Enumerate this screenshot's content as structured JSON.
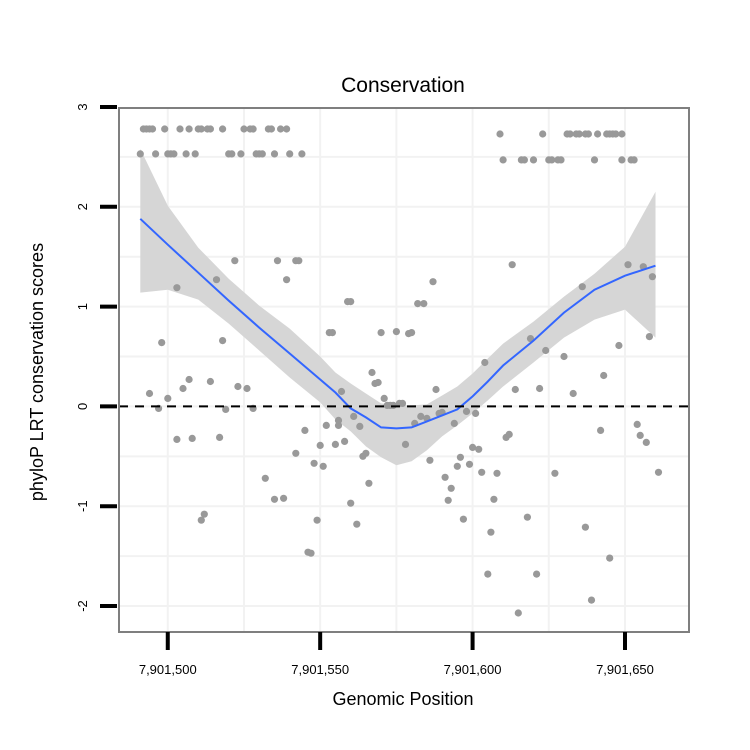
{
  "chart_data": {
    "type": "scatter",
    "title": "Conservation",
    "xlabel": "Genomic Position",
    "ylabel": "phyloP LRT conservation scores",
    "xlim": [
      7901484,
      7901671
    ],
    "ylim": [
      -2.26,
      2.99
    ],
    "x_ticks": [
      7901500,
      7901550,
      7901600,
      7901650
    ],
    "x_tick_labels": [
      "7,901,500",
      "7,901,550",
      "7,901,600",
      "7,901,650"
    ],
    "y_ticks": [
      -2,
      -1,
      0,
      1,
      2,
      3
    ],
    "y_tick_labels": [
      "-2",
      "-1",
      "0",
      "1",
      "2",
      "3"
    ],
    "reference_line_y": 0,
    "colors": {
      "points": "#999999",
      "smooth": "#3366ff",
      "band": "#d6d6d6",
      "panel_border": "#7f7f7f",
      "grid": "#f2f2f2"
    },
    "points": [
      [
        7901491,
        2.53
      ],
      [
        7901492,
        2.78
      ],
      [
        7901493,
        2.78
      ],
      [
        7901494,
        0.13
      ],
      [
        7901494,
        2.78
      ],
      [
        7901495,
        2.78
      ],
      [
        7901496,
        2.53
      ],
      [
        7901497,
        -0.02
      ],
      [
        7901498,
        0.64
      ],
      [
        7901499,
        2.78
      ],
      [
        7901500,
        0.08
      ],
      [
        7901500,
        2.53
      ],
      [
        7901501,
        2.53
      ],
      [
        7901502,
        2.53
      ],
      [
        7901503,
        -0.33
      ],
      [
        7901503,
        1.19
      ],
      [
        7901504,
        2.78
      ],
      [
        7901505,
        0.18
      ],
      [
        7901506,
        2.53
      ],
      [
        7901507,
        0.27
      ],
      [
        7901507,
        2.78
      ],
      [
        7901508,
        -0.32
      ],
      [
        7901509,
        2.53
      ],
      [
        7901510,
        2.78
      ],
      [
        7901511,
        -1.14
      ],
      [
        7901511,
        2.78
      ],
      [
        7901512,
        -1.08
      ],
      [
        7901513,
        2.78
      ],
      [
        7901514,
        0.25
      ],
      [
        7901514,
        2.78
      ],
      [
        7901516,
        1.27
      ],
      [
        7901517,
        -0.31
      ],
      [
        7901518,
        2.78
      ],
      [
        7901518,
        0.66
      ],
      [
        7901519,
        -0.03
      ],
      [
        7901520,
        2.53
      ],
      [
        7901521,
        2.53
      ],
      [
        7901522,
        1.46
      ],
      [
        7901523,
        0.2
      ],
      [
        7901524,
        2.53
      ],
      [
        7901525,
        2.78
      ],
      [
        7901526,
        0.18
      ],
      [
        7901527,
        2.78
      ],
      [
        7901528,
        2.78
      ],
      [
        7901528,
        -0.02
      ],
      [
        7901529,
        2.53
      ],
      [
        7901530,
        2.53
      ],
      [
        7901531,
        2.53
      ],
      [
        7901532,
        -0.72
      ],
      [
        7901533,
        2.78
      ],
      [
        7901534,
        2.78
      ],
      [
        7901535,
        2.53
      ],
      [
        7901535,
        -0.93
      ],
      [
        7901536,
        1.46
      ],
      [
        7901537,
        2.78
      ],
      [
        7901538,
        -0.92
      ],
      [
        7901539,
        2.78
      ],
      [
        7901539,
        1.27
      ],
      [
        7901540,
        2.53
      ],
      [
        7901542,
        -0.47
      ],
      [
        7901542,
        1.46
      ],
      [
        7901543,
        1.46
      ],
      [
        7901544,
        2.53
      ],
      [
        7901545,
        -0.24
      ],
      [
        7901546,
        -1.46
      ],
      [
        7901547,
        -1.47
      ],
      [
        7901548,
        -0.57
      ],
      [
        7901549,
        -1.14
      ],
      [
        7901550,
        -0.39
      ],
      [
        7901551,
        -0.6
      ],
      [
        7901552,
        -0.19
      ],
      [
        7901553,
        0.74
      ],
      [
        7901554,
        0.74
      ],
      [
        7901555,
        -0.38
      ],
      [
        7901556,
        -0.19
      ],
      [
        7901556,
        -0.14
      ],
      [
        7901557,
        0.15
      ],
      [
        7901558,
        -0.35
      ],
      [
        7901559,
        1.05
      ],
      [
        7901560,
        -0.97
      ],
      [
        7901560,
        1.05
      ],
      [
        7901561,
        -0.1
      ],
      [
        7901562,
        -1.18
      ],
      [
        7901563,
        -0.2
      ],
      [
        7901564,
        -0.5
      ],
      [
        7901565,
        -0.47
      ],
      [
        7901566,
        -0.77
      ],
      [
        7901567,
        0.34
      ],
      [
        7901568,
        0.23
      ],
      [
        7901569,
        0.24
      ],
      [
        7901570,
        0.74
      ],
      [
        7901571,
        0.08
      ],
      [
        7901572,
        0.01
      ],
      [
        7901573,
        0.01
      ],
      [
        7901574,
        0.01
      ],
      [
        7901575,
        0.75
      ],
      [
        7901576,
        0.03
      ],
      [
        7901577,
        0.03
      ],
      [
        7901578,
        -0.38
      ],
      [
        7901579,
        0.73
      ],
      [
        7901580,
        0.74
      ],
      [
        7901581,
        -0.17
      ],
      [
        7901582,
        1.03
      ],
      [
        7901583,
        -0.1
      ],
      [
        7901584,
        1.03
      ],
      [
        7901585,
        -0.12
      ],
      [
        7901586,
        -0.54
      ],
      [
        7901587,
        1.25
      ],
      [
        7901588,
        0.17
      ],
      [
        7901589,
        -0.07
      ],
      [
        7901590,
        -0.06
      ],
      [
        7901591,
        -0.71
      ],
      [
        7901592,
        -0.94
      ],
      [
        7901593,
        -0.82
      ],
      [
        7901594,
        -0.17
      ],
      [
        7901595,
        -0.6
      ],
      [
        7901596,
        -0.51
      ],
      [
        7901597,
        -1.13
      ],
      [
        7901598,
        -0.05
      ],
      [
        7901599,
        -0.58
      ],
      [
        7901600,
        -0.41
      ],
      [
        7901601,
        -0.07
      ],
      [
        7901602,
        -0.43
      ],
      [
        7901603,
        -0.66
      ],
      [
        7901604,
        0.44
      ],
      [
        7901605,
        -1.68
      ],
      [
        7901606,
        -1.26
      ],
      [
        7901607,
        -0.93
      ],
      [
        7901608,
        -0.67
      ],
      [
        7901609,
        2.73
      ],
      [
        7901610,
        2.47
      ],
      [
        7901611,
        -0.31
      ],
      [
        7901612,
        -0.28
      ],
      [
        7901613,
        1.42
      ],
      [
        7901614,
        0.17
      ],
      [
        7901615,
        -2.07
      ],
      [
        7901616,
        2.47
      ],
      [
        7901617,
        2.47
      ],
      [
        7901618,
        -1.11
      ],
      [
        7901619,
        0.68
      ],
      [
        7901620,
        2.47
      ],
      [
        7901621,
        -1.68
      ],
      [
        7901622,
        0.18
      ],
      [
        7901623,
        2.73
      ],
      [
        7901624,
        0.56
      ],
      [
        7901625,
        2.47
      ],
      [
        7901626,
        2.47
      ],
      [
        7901627,
        -0.67
      ],
      [
        7901628,
        2.47
      ],
      [
        7901629,
        2.47
      ],
      [
        7901630,
        0.5
      ],
      [
        7901631,
        2.73
      ],
      [
        7901632,
        2.73
      ],
      [
        7901633,
        0.13
      ],
      [
        7901634,
        2.73
      ],
      [
        7901635,
        2.73
      ],
      [
        7901636,
        1.2
      ],
      [
        7901637,
        2.73
      ],
      [
        7901637,
        -1.21
      ],
      [
        7901638,
        2.73
      ],
      [
        7901639,
        -1.94
      ],
      [
        7901640,
        2.47
      ],
      [
        7901641,
        2.73
      ],
      [
        7901642,
        -0.24
      ],
      [
        7901643,
        0.31
      ],
      [
        7901644,
        2.73
      ],
      [
        7901645,
        -1.52
      ],
      [
        7901645,
        2.73
      ],
      [
        7901646,
        2.73
      ],
      [
        7901647,
        2.73
      ],
      [
        7901648,
        0.61
      ],
      [
        7901649,
        2.73
      ],
      [
        7901649,
        2.47
      ],
      [
        7901651,
        1.42
      ],
      [
        7901652,
        2.47
      ],
      [
        7901653,
        2.47
      ],
      [
        7901654,
        -0.18
      ],
      [
        7901655,
        -0.29
      ],
      [
        7901656,
        1.4
      ],
      [
        7901657,
        -0.36
      ],
      [
        7901658,
        0.7
      ],
      [
        7901659,
        1.3
      ],
      [
        7901661,
        -0.66
      ]
    ],
    "smooth": [
      [
        7901491,
        1.88
      ],
      [
        7901500,
        1.62
      ],
      [
        7901510,
        1.34
      ],
      [
        7901520,
        1.06
      ],
      [
        7901530,
        0.79
      ],
      [
        7901540,
        0.53
      ],
      [
        7901550,
        0.27
      ],
      [
        7901555,
        0.14
      ],
      [
        7901560,
        -0.02
      ],
      [
        7901565,
        -0.11
      ],
      [
        7901570,
        -0.21
      ],
      [
        7901575,
        -0.22
      ],
      [
        7901580,
        -0.21
      ],
      [
        7901585,
        -0.15
      ],
      [
        7901590,
        -0.09
      ],
      [
        7901595,
        -0.03
      ],
      [
        7901600,
        0.1
      ],
      [
        7901605,
        0.25
      ],
      [
        7901610,
        0.41
      ],
      [
        7901620,
        0.66
      ],
      [
        7901630,
        0.94
      ],
      [
        7901640,
        1.17
      ],
      [
        7901650,
        1.31
      ],
      [
        7901660,
        1.41
      ]
    ],
    "band_upper": [
      [
        7901491,
        2.58
      ],
      [
        7901500,
        2.01
      ],
      [
        7901510,
        1.59
      ],
      [
        7901520,
        1.28
      ],
      [
        7901530,
        1.01
      ],
      [
        7901540,
        0.78
      ],
      [
        7901550,
        0.5
      ],
      [
        7901555,
        0.34
      ],
      [
        7901560,
        0.23
      ],
      [
        7901565,
        0.13
      ],
      [
        7901570,
        0.03
      ],
      [
        7901575,
        0.01
      ],
      [
        7901580,
        0.01
      ],
      [
        7901585,
        0.02
      ],
      [
        7901590,
        0.11
      ],
      [
        7901595,
        0.2
      ],
      [
        7901600,
        0.33
      ],
      [
        7901605,
        0.48
      ],
      [
        7901610,
        0.63
      ],
      [
        7901620,
        0.85
      ],
      [
        7901630,
        1.1
      ],
      [
        7901640,
        1.33
      ],
      [
        7901650,
        1.6
      ],
      [
        7901660,
        2.15
      ]
    ],
    "band_lower": [
      [
        7901491,
        1.14
      ],
      [
        7901500,
        1.17
      ],
      [
        7901510,
        1.07
      ],
      [
        7901520,
        0.83
      ],
      [
        7901530,
        0.56
      ],
      [
        7901540,
        0.29
      ],
      [
        7901550,
        0.04
      ],
      [
        7901555,
        -0.13
      ],
      [
        7901560,
        -0.25
      ],
      [
        7901565,
        -0.4
      ],
      [
        7901570,
        -0.51
      ],
      [
        7901575,
        -0.59
      ],
      [
        7901580,
        -0.55
      ],
      [
        7901585,
        -0.44
      ],
      [
        7901590,
        -0.3
      ],
      [
        7901595,
        -0.19
      ],
      [
        7901600,
        -0.07
      ],
      [
        7901605,
        0.06
      ],
      [
        7901610,
        0.2
      ],
      [
        7901620,
        0.44
      ],
      [
        7901630,
        0.69
      ],
      [
        7901640,
        0.87
      ],
      [
        7901650,
        0.97
      ],
      [
        7901660,
        0.69
      ]
    ]
  }
}
